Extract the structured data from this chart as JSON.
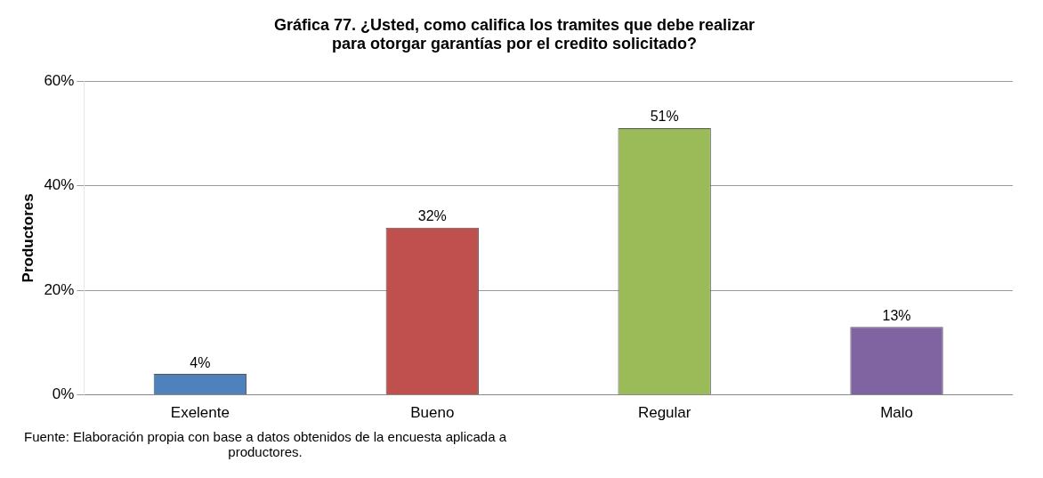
{
  "chart_data": {
    "type": "bar",
    "title": "Gráfica 77. ¿Usted, como califica los tramites que debe realizar para otorgar garantías por el credito solicitado?",
    "ylabel": "Productores",
    "categories": [
      "Exelente",
      "Bueno",
      "Regular",
      "Malo"
    ],
    "values": [
      4,
      32,
      51,
      13
    ],
    "value_labels": [
      "4%",
      "32%",
      "51%",
      "13%"
    ],
    "colors": [
      "#4f81bd",
      "#c0504d",
      "#9bbb59",
      "#8064a2"
    ],
    "ylim": [
      0,
      60
    ],
    "yticks": [
      {
        "value": 0,
        "label": "0%"
      },
      {
        "value": 20,
        "label": "20%"
      },
      {
        "value": 40,
        "label": "40%"
      },
      {
        "value": 60,
        "label": "60%"
      }
    ],
    "grid": "y",
    "legend": false,
    "annotations": [
      "Fuente: Elaboración propia con base a datos obtenidos de la encuesta aplicada a productores."
    ]
  }
}
